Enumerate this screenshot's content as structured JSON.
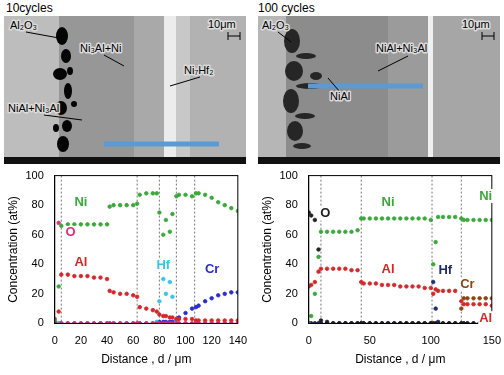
{
  "chart_data": [
    {
      "type": "scatter",
      "x_label": "Distance , d / μm",
      "y_label": "Concentration (at%)",
      "x": [
        0,
        3,
        5,
        10,
        15,
        20,
        25,
        30,
        35,
        40,
        42,
        45,
        50,
        55,
        60,
        63,
        65,
        70,
        75,
        78,
        80,
        83,
        85,
        88,
        90,
        93,
        95,
        100,
        105,
        108,
        110,
        115,
        120,
        125,
        130,
        135,
        140
      ],
      "series": [
        {
          "name": "Ni",
          "color": "#3aa83a",
          "marker": "circle",
          "values": [
            2,
            25,
            66,
            67,
            67,
            67,
            67,
            67,
            67,
            67,
            79,
            80,
            80,
            80,
            80,
            81,
            87,
            88,
            88,
            88,
            75,
            60,
            70,
            62,
            74,
            86,
            87,
            87,
            86,
            88,
            88,
            87,
            85,
            82,
            80,
            78,
            76
          ]
        },
        {
          "name": "O",
          "color": "#e0307a",
          "marker": "circle",
          "values": [
            3,
            68,
            0,
            0,
            0,
            0,
            0,
            0,
            0,
            0,
            0,
            0,
            0,
            0,
            0,
            0,
            0,
            0,
            0,
            0,
            0,
            0,
            0,
            0,
            0,
            0,
            0,
            0,
            0,
            0,
            0,
            0,
            0,
            0,
            0,
            0,
            0
          ]
        },
        {
          "name": "Al",
          "color": "#d62728",
          "marker": "circle",
          "values": [
            1,
            8,
            33,
            33,
            32,
            32,
            32,
            31,
            31,
            30,
            22,
            21,
            20,
            20,
            19,
            18,
            11,
            10,
            9,
            8,
            6,
            5,
            5,
            4,
            4,
            3,
            3,
            3,
            3,
            2,
            2,
            2,
            2,
            2,
            2,
            2,
            2
          ]
        },
        {
          "name": "Hf",
          "color": "#33c6e8",
          "marker": "circle",
          "values": [
            0,
            0,
            0,
            0,
            0,
            0,
            0,
            0,
            0,
            0,
            0,
            0,
            0,
            0,
            0,
            0,
            0,
            0,
            0,
            1,
            15,
            30,
            20,
            28,
            18,
            2,
            0,
            0,
            0,
            0,
            0,
            0,
            0,
            0,
            0,
            0,
            0
          ]
        },
        {
          "name": "Cr",
          "color": "#2b2bd0",
          "marker": "circle",
          "values": [
            0,
            0,
            0,
            0,
            0,
            0,
            0,
            0,
            0,
            0,
            0,
            0,
            0,
            0,
            0,
            0,
            0,
            0,
            0,
            0,
            1,
            1,
            1,
            1,
            1,
            2,
            4,
            7,
            10,
            11,
            12,
            15,
            17,
            19,
            20,
            21,
            21
          ]
        }
      ],
      "boundaries": [
        5,
        63,
        80,
        93,
        107
      ],
      "xlim": [
        0,
        140
      ],
      "xticks": [
        0,
        20,
        40,
        60,
        80,
        100,
        120,
        140
      ],
      "ylim": [
        0,
        100
      ],
      "yticks": [
        0,
        20,
        40,
        60,
        80,
        100
      ],
      "grid": false
    },
    {
      "type": "scatter",
      "x_label": "Distance , d / μm",
      "y_label": "Concentration (at%)",
      "x": [
        0,
        2,
        5,
        8,
        10,
        15,
        20,
        25,
        30,
        35,
        40,
        43,
        45,
        50,
        55,
        60,
        65,
        70,
        75,
        80,
        85,
        90,
        95,
        100,
        102,
        104,
        106,
        110,
        115,
        120,
        125,
        127,
        130,
        135,
        140,
        145,
        150
      ],
      "series": [
        {
          "name": "Ni",
          "color": "#3aa83a",
          "marker": "circle",
          "values": [
            0,
            5,
            20,
            45,
            62,
            62,
            62,
            62,
            62,
            62,
            63,
            71,
            71,
            71,
            71,
            71,
            71,
            71,
            71,
            71,
            71,
            71,
            71,
            70,
            40,
            55,
            72,
            72,
            72,
            72,
            71,
            70,
            70,
            70,
            70,
            70,
            70
          ]
        },
        {
          "name": "O",
          "color": "#222222",
          "marker": "circle",
          "values": [
            75,
            73,
            70,
            50,
            2,
            1,
            0,
            0,
            0,
            0,
            0,
            0,
            0,
            0,
            0,
            0,
            0,
            0,
            0,
            0,
            0,
            0,
            0,
            0,
            0,
            0,
            0,
            0,
            0,
            0,
            0,
            0,
            0,
            0,
            0,
            0,
            0
          ]
        },
        {
          "name": "Al",
          "color": "#d62728",
          "marker": "circle",
          "values": [
            25,
            26,
            28,
            35,
            37,
            37,
            37,
            37,
            37,
            36,
            36,
            28,
            27,
            27,
            27,
            26,
            26,
            26,
            25,
            25,
            25,
            25,
            24,
            24,
            20,
            23,
            22,
            22,
            22,
            22,
            15,
            13,
            13,
            13,
            13,
            13,
            12
          ]
        },
        {
          "name": "Hf",
          "color": "#1f2d6e",
          "marker": "circle",
          "values": [
            0,
            0,
            0,
            0,
            0,
            0,
            0,
            0,
            0,
            0,
            0,
            0,
            0,
            0,
            0,
            0,
            0,
            0,
            0,
            0,
            0,
            0,
            0,
            0,
            28,
            10,
            1,
            0,
            0,
            0,
            0,
            0,
            0,
            0,
            0,
            0,
            0
          ]
        },
        {
          "name": "Cr",
          "color": "#8b4513",
          "marker": "circle",
          "values": [
            0,
            0,
            0,
            0,
            0,
            0,
            0,
            0,
            0,
            0,
            0,
            0,
            0,
            0,
            0,
            0,
            0,
            0,
            0,
            0,
            0,
            0,
            0,
            0,
            0,
            0,
            0,
            0,
            0,
            0,
            10,
            17,
            17,
            17,
            17,
            17,
            17
          ]
        }
      ],
      "boundaries": [
        10,
        43,
        101,
        125
      ],
      "xlim": [
        0,
        150
      ],
      "xticks": [
        0,
        50,
        100,
        150
      ],
      "ylim": [
        0,
        100
      ],
      "yticks": [
        0,
        20,
        40,
        60,
        80,
        100
      ],
      "grid": false
    }
  ],
  "micrographs": [
    {
      "title": "10cycles",
      "labels": [
        "Al₂O₃",
        "Ni₃Al+Ni",
        "Ni₇Hf₂",
        "NiAl+Ni₃Al"
      ],
      "scale_bar": "10μm"
    },
    {
      "title": "100 cycles",
      "labels": [
        "Al₂O₃",
        "NiAl+Ni₃Al",
        "NiAl"
      ],
      "scale_bar": "10μm"
    }
  ]
}
